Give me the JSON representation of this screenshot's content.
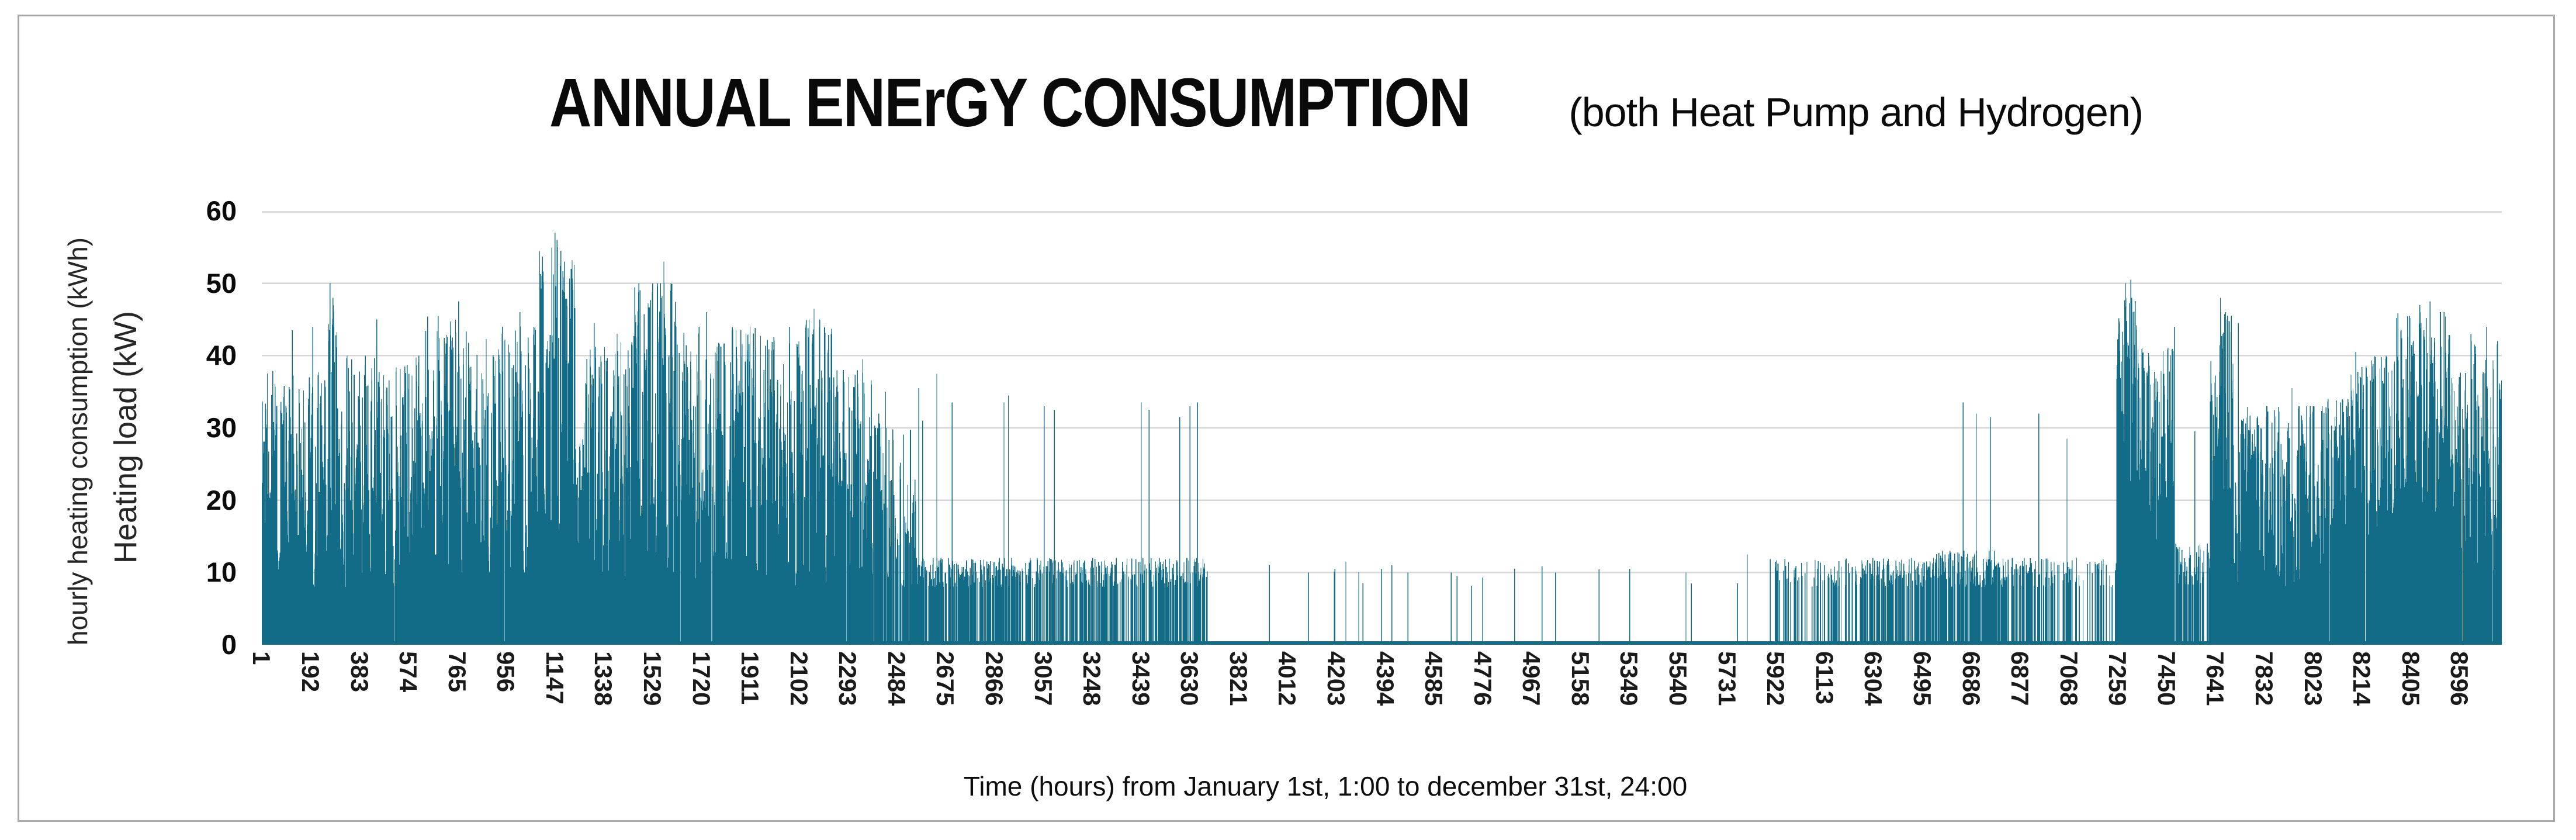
{
  "frame": {
    "border_color": "#a8a8a8",
    "background": "#ffffff"
  },
  "title": {
    "main": "ANNUAL ENErGY CONSUMPTION",
    "sub": "(both Heat Pump and Hydrogen)"
  },
  "y_axis": {
    "label_outer": "hourly heating consumption (kWh)",
    "label_inner": "Heating load (kW)",
    "ticks": [
      0,
      10,
      20,
      30,
      40,
      50,
      60
    ],
    "min": 0,
    "max": 60
  },
  "x_axis": {
    "title": "Time (hours) from January 1st, 1:00 to december 31st, 24:00",
    "tick_start": 1,
    "tick_step": 191,
    "ticks": [
      1,
      192,
      383,
      574,
      765,
      956,
      1147,
      1338,
      1529,
      1720,
      1911,
      2102,
      2293,
      2484,
      2675,
      2866,
      3057,
      3248,
      3439,
      3630,
      3821,
      4012,
      4203,
      4394,
      4585,
      4776,
      4967,
      5158,
      5349,
      5540,
      5731,
      5922,
      6113,
      6304,
      6495,
      6686,
      6877,
      7068,
      7259,
      7450,
      7641,
      7832,
      8023,
      8214,
      8405,
      8596
    ],
    "hours_total": 8760
  },
  "chart_data": {
    "type": "bar",
    "title": "ANNUAL ENErGY CONSUMPTION (both Heat Pump and Hydrogen)",
    "xlabel": "Time (hours) from January 1st, 1:00 to december 31st, 24:00",
    "ylabel": "hourly heating consumption (kWh) / Heating load (kW)",
    "x_range": [
      1,
      8760
    ],
    "ylim": [
      0,
      60
    ],
    "grid": "horizontal",
    "legend": "none",
    "series_color": "#136c87",
    "gridline_color": "#d6d6d6",
    "sampling_note": "8760 hourly bars; values estimated from pixels. Encoded as seasonal segments [start_hour, end_hour, min_kWh, max_kWh, fraction_of_hours_nonzero] plus explicit notable peaks [hour, kWh].",
    "segments": [
      [
        1,
        260,
        8,
        38,
        0.82
      ],
      [
        260,
        300,
        8,
        48,
        0.85
      ],
      [
        300,
        640,
        8,
        40,
        0.82
      ],
      [
        640,
        830,
        10,
        46,
        0.85
      ],
      [
        830,
        1080,
        10,
        44,
        0.85
      ],
      [
        1080,
        1230,
        14,
        55,
        0.93
      ],
      [
        1230,
        1450,
        8,
        42,
        0.85
      ],
      [
        1450,
        1620,
        10,
        50,
        0.88
      ],
      [
        1620,
        2100,
        8,
        44,
        0.84
      ],
      [
        2100,
        2230,
        8,
        45,
        0.8
      ],
      [
        2230,
        2420,
        8,
        38,
        0.72
      ],
      [
        2420,
        2560,
        8,
        30,
        0.45
      ],
      [
        2560,
        2980,
        8,
        12,
        0.5
      ],
      [
        2980,
        3440,
        8,
        12,
        0.38
      ],
      [
        3440,
        3700,
        8,
        12,
        0.4
      ],
      [
        3700,
        4800,
        8,
        11,
        0.006
      ],
      [
        4800,
        5900,
        8,
        11,
        0.003
      ],
      [
        5900,
        6250,
        8,
        12,
        0.2
      ],
      [
        6250,
        6550,
        8,
        12,
        0.42
      ],
      [
        6550,
        6800,
        8,
        13,
        0.55
      ],
      [
        6800,
        7100,
        8,
        12,
        0.3
      ],
      [
        7100,
        7255,
        8,
        12,
        0.15
      ],
      [
        7255,
        7340,
        18,
        48,
        0.95
      ],
      [
        7340,
        7480,
        14,
        41,
        0.92
      ],
      [
        7480,
        7620,
        8,
        14,
        0.55
      ],
      [
        7620,
        7710,
        18,
        46,
        0.9
      ],
      [
        7710,
        8060,
        8,
        33,
        0.8
      ],
      [
        8060,
        8160,
        12,
        34,
        0.85
      ],
      [
        8160,
        8350,
        14,
        40,
        0.86
      ],
      [
        8350,
        8570,
        18,
        46,
        0.92
      ],
      [
        8570,
        8761,
        10,
        42,
        0.85
      ]
    ],
    "peaks": [
      [
        120,
        43.5
      ],
      [
        200,
        44
      ],
      [
        267,
        50
      ],
      [
        450,
        45
      ],
      [
        560,
        38.5
      ],
      [
        690,
        45.5
      ],
      [
        770,
        47.5
      ],
      [
        940,
        43
      ],
      [
        1010,
        46
      ],
      [
        1100,
        50
      ],
      [
        1147,
        57
      ],
      [
        1155,
        56
      ],
      [
        1170,
        54.5
      ],
      [
        1185,
        53
      ],
      [
        1210,
        52
      ],
      [
        1300,
        44.5
      ],
      [
        1390,
        43
      ],
      [
        1560,
        50
      ],
      [
        1573,
        53
      ],
      [
        1600,
        49
      ],
      [
        1740,
        46
      ],
      [
        1840,
        43.5
      ],
      [
        1910,
        44
      ],
      [
        2160,
        46.5
      ],
      [
        2200,
        44
      ],
      [
        2350,
        39.5
      ],
      [
        2440,
        35
      ],
      [
        2570,
        35.5
      ],
      [
        2585,
        31
      ],
      [
        2640,
        37.5
      ],
      [
        2700,
        33.5
      ],
      [
        2903,
        33.5
      ],
      [
        2920,
        34.5
      ],
      [
        3060,
        33
      ],
      [
        3100,
        32.5
      ],
      [
        3250,
        12
      ],
      [
        3440,
        33.5
      ],
      [
        3470,
        32.5
      ],
      [
        3590,
        31.5
      ],
      [
        3630,
        33
      ],
      [
        3660,
        33.5
      ],
      [
        3941,
        11
      ],
      [
        4094,
        10
      ],
      [
        4197,
        10.5
      ],
      [
        4240,
        11.5
      ],
      [
        4380,
        10.5
      ],
      [
        4420,
        11
      ],
      [
        4483,
        10
      ],
      [
        4652,
        10
      ],
      [
        4675,
        9.5
      ],
      [
        4900,
        10.5
      ],
      [
        5060,
        10
      ],
      [
        5350,
        10.5
      ],
      [
        5570,
        10
      ],
      [
        5810,
        12.5
      ],
      [
        6043,
        11.5
      ],
      [
        6137,
        10.5
      ],
      [
        6583,
        12.5
      ],
      [
        6654,
        33.5
      ],
      [
        6706,
        32
      ],
      [
        6760,
        31.5
      ],
      [
        6950,
        32
      ],
      [
        7060,
        28.5
      ],
      [
        7150,
        11.5
      ],
      [
        7290,
        50
      ],
      [
        7310,
        50.5
      ],
      [
        7480,
        44
      ],
      [
        7560,
        29.5
      ],
      [
        7660,
        48
      ],
      [
        7680,
        46
      ],
      [
        7730,
        44.5
      ],
      [
        7940,
        35.5
      ],
      [
        8010,
        31.5
      ],
      [
        8130,
        33.5
      ],
      [
        8190,
        40.5
      ],
      [
        8230,
        38.5
      ],
      [
        8400,
        45.5
      ],
      [
        8440,
        47
      ],
      [
        8480,
        47.5
      ],
      [
        8520,
        46
      ],
      [
        8640,
        43
      ],
      [
        8700,
        44
      ],
      [
        8756,
        34
      ]
    ],
    "seed": 11
  }
}
